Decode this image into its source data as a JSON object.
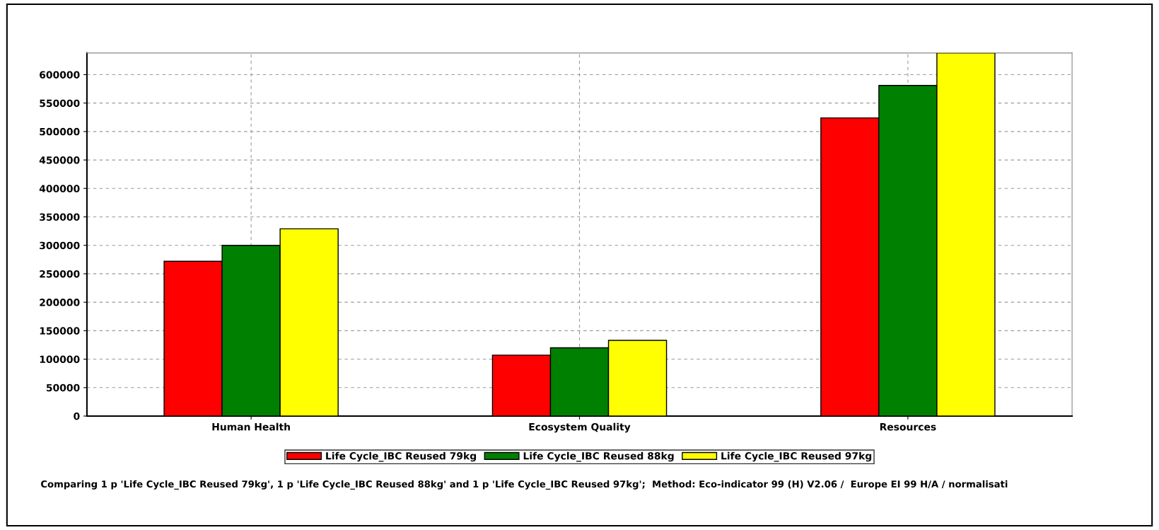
{
  "chart_data": {
    "type": "bar",
    "categories": [
      "Human Health",
      "Ecosystem Quality",
      "Resources"
    ],
    "series": [
      {
        "name": "Life Cycle_IBC Reused 79kg",
        "color": "#ff0000",
        "values": [
          272000,
          107000,
          524000
        ]
      },
      {
        "name": "Life Cycle_IBC Reused 88kg",
        "color": "#008000",
        "values": [
          300000,
          120000,
          581000
        ]
      },
      {
        "name": "Life Cycle_IBC Reused 97kg",
        "color": "#ffff00",
        "values": [
          329000,
          133000,
          638000
        ]
      }
    ],
    "ylim": [
      0,
      638000
    ],
    "yticks": [
      0,
      50000,
      100000,
      150000,
      200000,
      250000,
      300000,
      350000,
      400000,
      450000,
      500000,
      550000,
      600000
    ],
    "grid": true,
    "legend": "bottom",
    "annotations": [
      "Comparing 1 p 'Life Cycle_IBC Reused 79kg', 1 p 'Life Cycle_IBC Reused 88kg' and 1 p 'Life Cycle_IBC Reused 97kg';  Method: Eco-indicator 99 (H) V2.06 /  Europe EI 99 H/A / normalisati"
    ]
  }
}
